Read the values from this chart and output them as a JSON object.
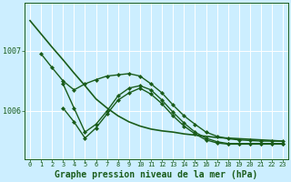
{
  "background_color": "#cceeff",
  "grid_color": "#ffffff",
  "line_color": "#1a5c1a",
  "xlabel": "Graphe pression niveau de la mer (hPa)",
  "ylabel_ticks": [
    1006,
    1007
  ],
  "xlim": [
    -0.5,
    23.5
  ],
  "ylim": [
    1005.2,
    1007.8
  ],
  "ytick_fontsize": 6,
  "xtick_fontsize": 5,
  "xlabel_fontsize": 7,
  "series": [
    {
      "x": [
        0,
        1,
        2,
        3,
        4,
        5,
        6,
        7,
        8,
        9,
        10,
        11,
        12,
        13,
        14,
        15,
        16,
        17,
        18,
        19,
        20,
        21,
        22,
        23
      ],
      "y": [
        1007.5,
        1007.28,
        1007.06,
        1006.85,
        1006.63,
        1006.42,
        1006.2,
        1006.05,
        1005.92,
        1005.82,
        1005.75,
        1005.7,
        1005.67,
        1005.65,
        1005.62,
        1005.6,
        1005.58,
        1005.56,
        1005.55,
        1005.54,
        1005.53,
        1005.52,
        1005.51,
        1005.5
      ],
      "marker": null,
      "linewidth": 1.2
    },
    {
      "x": [
        1,
        2,
        3,
        4,
        5,
        6,
        7,
        8,
        9,
        10,
        11,
        12,
        13,
        14,
        15,
        16,
        17,
        18,
        19,
        20,
        21,
        22,
        23
      ],
      "y": [
        1006.95,
        1006.72,
        1006.5,
        1006.35,
        1006.45,
        1006.52,
        1006.58,
        1006.6,
        1006.62,
        1006.58,
        1006.45,
        1006.3,
        1006.1,
        1005.92,
        1005.78,
        1005.65,
        1005.58,
        1005.54,
        1005.52,
        1005.51,
        1005.5,
        1005.5,
        1005.5
      ],
      "marker": "D",
      "markersize": 2.0,
      "linewidth": 1.0
    },
    {
      "x": [
        3,
        4,
        5,
        6,
        7,
        8,
        9,
        10,
        11,
        12,
        13,
        14,
        15,
        16,
        17,
        18,
        19,
        20,
        21,
        22,
        23
      ],
      "y": [
        1006.45,
        1006.05,
        1005.65,
        1005.78,
        1006.0,
        1006.25,
        1006.38,
        1006.42,
        1006.35,
        1006.18,
        1005.98,
        1005.8,
        1005.65,
        1005.55,
        1005.49,
        1005.46,
        1005.46,
        1005.46,
        1005.46,
        1005.46,
        1005.46
      ],
      "marker": "D",
      "markersize": 2.0,
      "linewidth": 1.0
    },
    {
      "x": [
        3,
        4,
        5,
        6,
        7,
        8,
        9,
        10,
        11,
        12,
        13,
        14,
        15,
        16,
        17,
        18,
        19,
        20,
        21,
        22,
        23
      ],
      "y": [
        1006.05,
        1005.82,
        1005.55,
        1005.72,
        1005.95,
        1006.18,
        1006.3,
        1006.38,
        1006.28,
        1006.12,
        1005.92,
        1005.75,
        1005.62,
        1005.52,
        1005.47,
        1005.45,
        1005.45,
        1005.45,
        1005.45,
        1005.45,
        1005.45
      ],
      "marker": "D",
      "markersize": 2.0,
      "linewidth": 1.0
    }
  ]
}
